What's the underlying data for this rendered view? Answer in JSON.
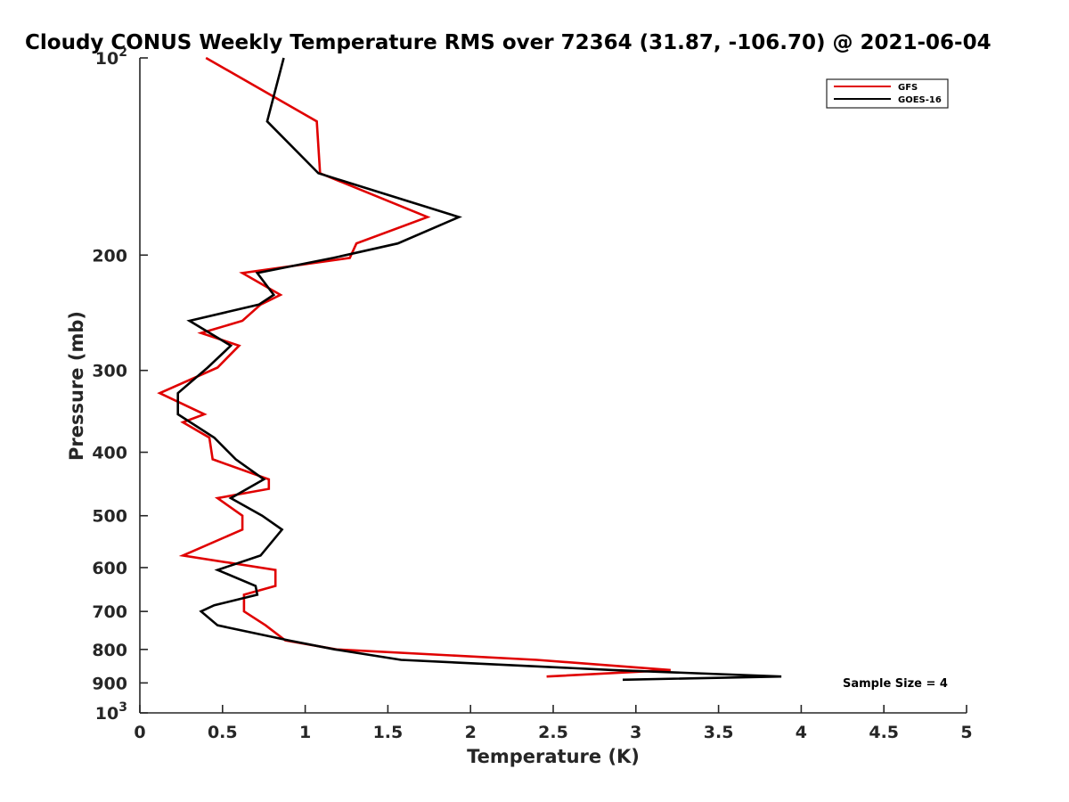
{
  "chart_data": {
    "type": "line",
    "title": "Cloudy CONUS Weekly Temperature RMS over 72364 (31.87, -106.70) @ 2021-06-04",
    "xlabel": "Temperature (K)",
    "ylabel": "Pressure (mb)",
    "xlim": [
      0,
      5
    ],
    "ylim": [
      100,
      1000
    ],
    "y_scale": "log",
    "y_reversed": true,
    "grid": false,
    "legend_position": "top-right",
    "x_ticks": [
      "0",
      "0.5",
      "1",
      "1.5",
      "2",
      "2.5",
      "3",
      "3.5",
      "4",
      "4.5",
      "5"
    ],
    "y_ticks": [
      {
        "value": 100,
        "base": "10",
        "exp": "2"
      },
      {
        "value": 200,
        "label": "200"
      },
      {
        "value": 300,
        "label": "300"
      },
      {
        "value": 400,
        "label": "400"
      },
      {
        "value": 500,
        "label": "500"
      },
      {
        "value": 600,
        "label": "600"
      },
      {
        "value": 700,
        "label": "700"
      },
      {
        "value": 800,
        "label": "800"
      },
      {
        "value": 900,
        "label": "900"
      },
      {
        "value": 1000,
        "base": "10",
        "exp": "3"
      }
    ],
    "series": [
      {
        "name": "GFS",
        "color": "#e00000",
        "points": [
          [
            0.4,
            100
          ],
          [
            1.07,
            125
          ],
          [
            1.09,
            150
          ],
          [
            1.74,
            175
          ],
          [
            1.31,
            192
          ],
          [
            1.27,
            202
          ],
          [
            0.62,
            213
          ],
          [
            0.85,
            230
          ],
          [
            0.73,
            238
          ],
          [
            0.62,
            252
          ],
          [
            0.37,
            263
          ],
          [
            0.6,
            275
          ],
          [
            0.47,
            297
          ],
          [
            0.12,
            325
          ],
          [
            0.39,
            350
          ],
          [
            0.26,
            360
          ],
          [
            0.42,
            380
          ],
          [
            0.44,
            410
          ],
          [
            0.78,
            440
          ],
          [
            0.78,
            455
          ],
          [
            0.47,
            470
          ],
          [
            0.62,
            500
          ],
          [
            0.62,
            525
          ],
          [
            0.26,
            575
          ],
          [
            0.82,
            605
          ],
          [
            0.82,
            640
          ],
          [
            0.63,
            660
          ],
          [
            0.63,
            700
          ],
          [
            0.76,
            735
          ],
          [
            0.88,
            775
          ],
          [
            1.19,
            800
          ],
          [
            2.4,
            830
          ],
          [
            3.21,
            860
          ],
          [
            2.46,
            880
          ]
        ]
      },
      {
        "name": "GOES-16",
        "color": "#000000",
        "points": [
          [
            0.87,
            100
          ],
          [
            0.77,
            125
          ],
          [
            1.08,
            150
          ],
          [
            1.93,
            175
          ],
          [
            1.56,
            192
          ],
          [
            1.17,
            202
          ],
          [
            0.71,
            213
          ],
          [
            0.81,
            230
          ],
          [
            0.72,
            238
          ],
          [
            0.3,
            252
          ],
          [
            0.55,
            275
          ],
          [
            0.41,
            297
          ],
          [
            0.23,
            325
          ],
          [
            0.23,
            350
          ],
          [
            0.45,
            380
          ],
          [
            0.58,
            410
          ],
          [
            0.75,
            440
          ],
          [
            0.55,
            470
          ],
          [
            0.74,
            500
          ],
          [
            0.86,
            525
          ],
          [
            0.73,
            575
          ],
          [
            0.47,
            605
          ],
          [
            0.7,
            640
          ],
          [
            0.71,
            660
          ],
          [
            0.45,
            685
          ],
          [
            0.37,
            700
          ],
          [
            0.47,
            735
          ],
          [
            0.9,
            775
          ],
          [
            1.18,
            800
          ],
          [
            1.58,
            830
          ],
          [
            2.86,
            860
          ],
          [
            3.88,
            880
          ],
          [
            2.92,
            890
          ]
        ]
      }
    ],
    "annotation": "Sample Size = 4"
  }
}
